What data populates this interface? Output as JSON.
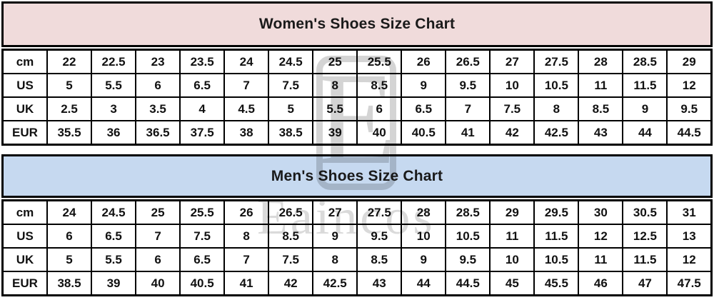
{
  "colors": {
    "women_header_bg": "#f0dbdb",
    "men_header_bg": "#c6d9f0",
    "border_color": "#000000",
    "watermark_color": "#d4d4d4",
    "watermark_text_color": "#dadada"
  },
  "watermark": {
    "logo_letter": "E",
    "text": "Eaincos"
  },
  "chart_data": [
    {
      "type": "table",
      "title": "Women's Shoes Size Chart",
      "row_labels": [
        "cm",
        "US",
        "UK",
        "EUR"
      ],
      "rows": [
        [
          "22",
          "22.5",
          "23",
          "23.5",
          "24",
          "24.5",
          "25",
          "25.5",
          "26",
          "26.5",
          "27",
          "27.5",
          "28",
          "28.5",
          "29"
        ],
        [
          "5",
          "5.5",
          "6",
          "6.5",
          "7",
          "7.5",
          "8",
          "8.5",
          "9",
          "9.5",
          "10",
          "10.5",
          "11",
          "11.5",
          "12"
        ],
        [
          "2.5",
          "3",
          "3.5",
          "4",
          "4.5",
          "5",
          "5.5",
          "6",
          "6.5",
          "7",
          "7.5",
          "8",
          "8.5",
          "9",
          "9.5"
        ],
        [
          "35.5",
          "36",
          "36.5",
          "37.5",
          "38",
          "38.5",
          "39",
          "40",
          "40.5",
          "41",
          "42",
          "42.5",
          "43",
          "44",
          "44.5"
        ]
      ]
    },
    {
      "type": "table",
      "title": "Men's Shoes Size Chart",
      "row_labels": [
        "cm",
        "US",
        "UK",
        "EUR"
      ],
      "rows": [
        [
          "24",
          "24.5",
          "25",
          "25.5",
          "26",
          "26.5",
          "27",
          "27.5",
          "28",
          "28.5",
          "29",
          "29.5",
          "30",
          "30.5",
          "31"
        ],
        [
          "6",
          "6.5",
          "7",
          "7.5",
          "8",
          "8.5",
          "9",
          "9.5",
          "10",
          "10.5",
          "11",
          "11.5",
          "12",
          "12.5",
          "13"
        ],
        [
          "5",
          "5.5",
          "6",
          "6.5",
          "7",
          "7.5",
          "8",
          "8.5",
          "9",
          "9.5",
          "10",
          "10.5",
          "11",
          "11.5",
          "12"
        ],
        [
          "38.5",
          "39",
          "40",
          "40.5",
          "41",
          "42",
          "42.5",
          "43",
          "44",
          "44.5",
          "45",
          "45.5",
          "46",
          "47",
          "47.5"
        ]
      ]
    }
  ]
}
